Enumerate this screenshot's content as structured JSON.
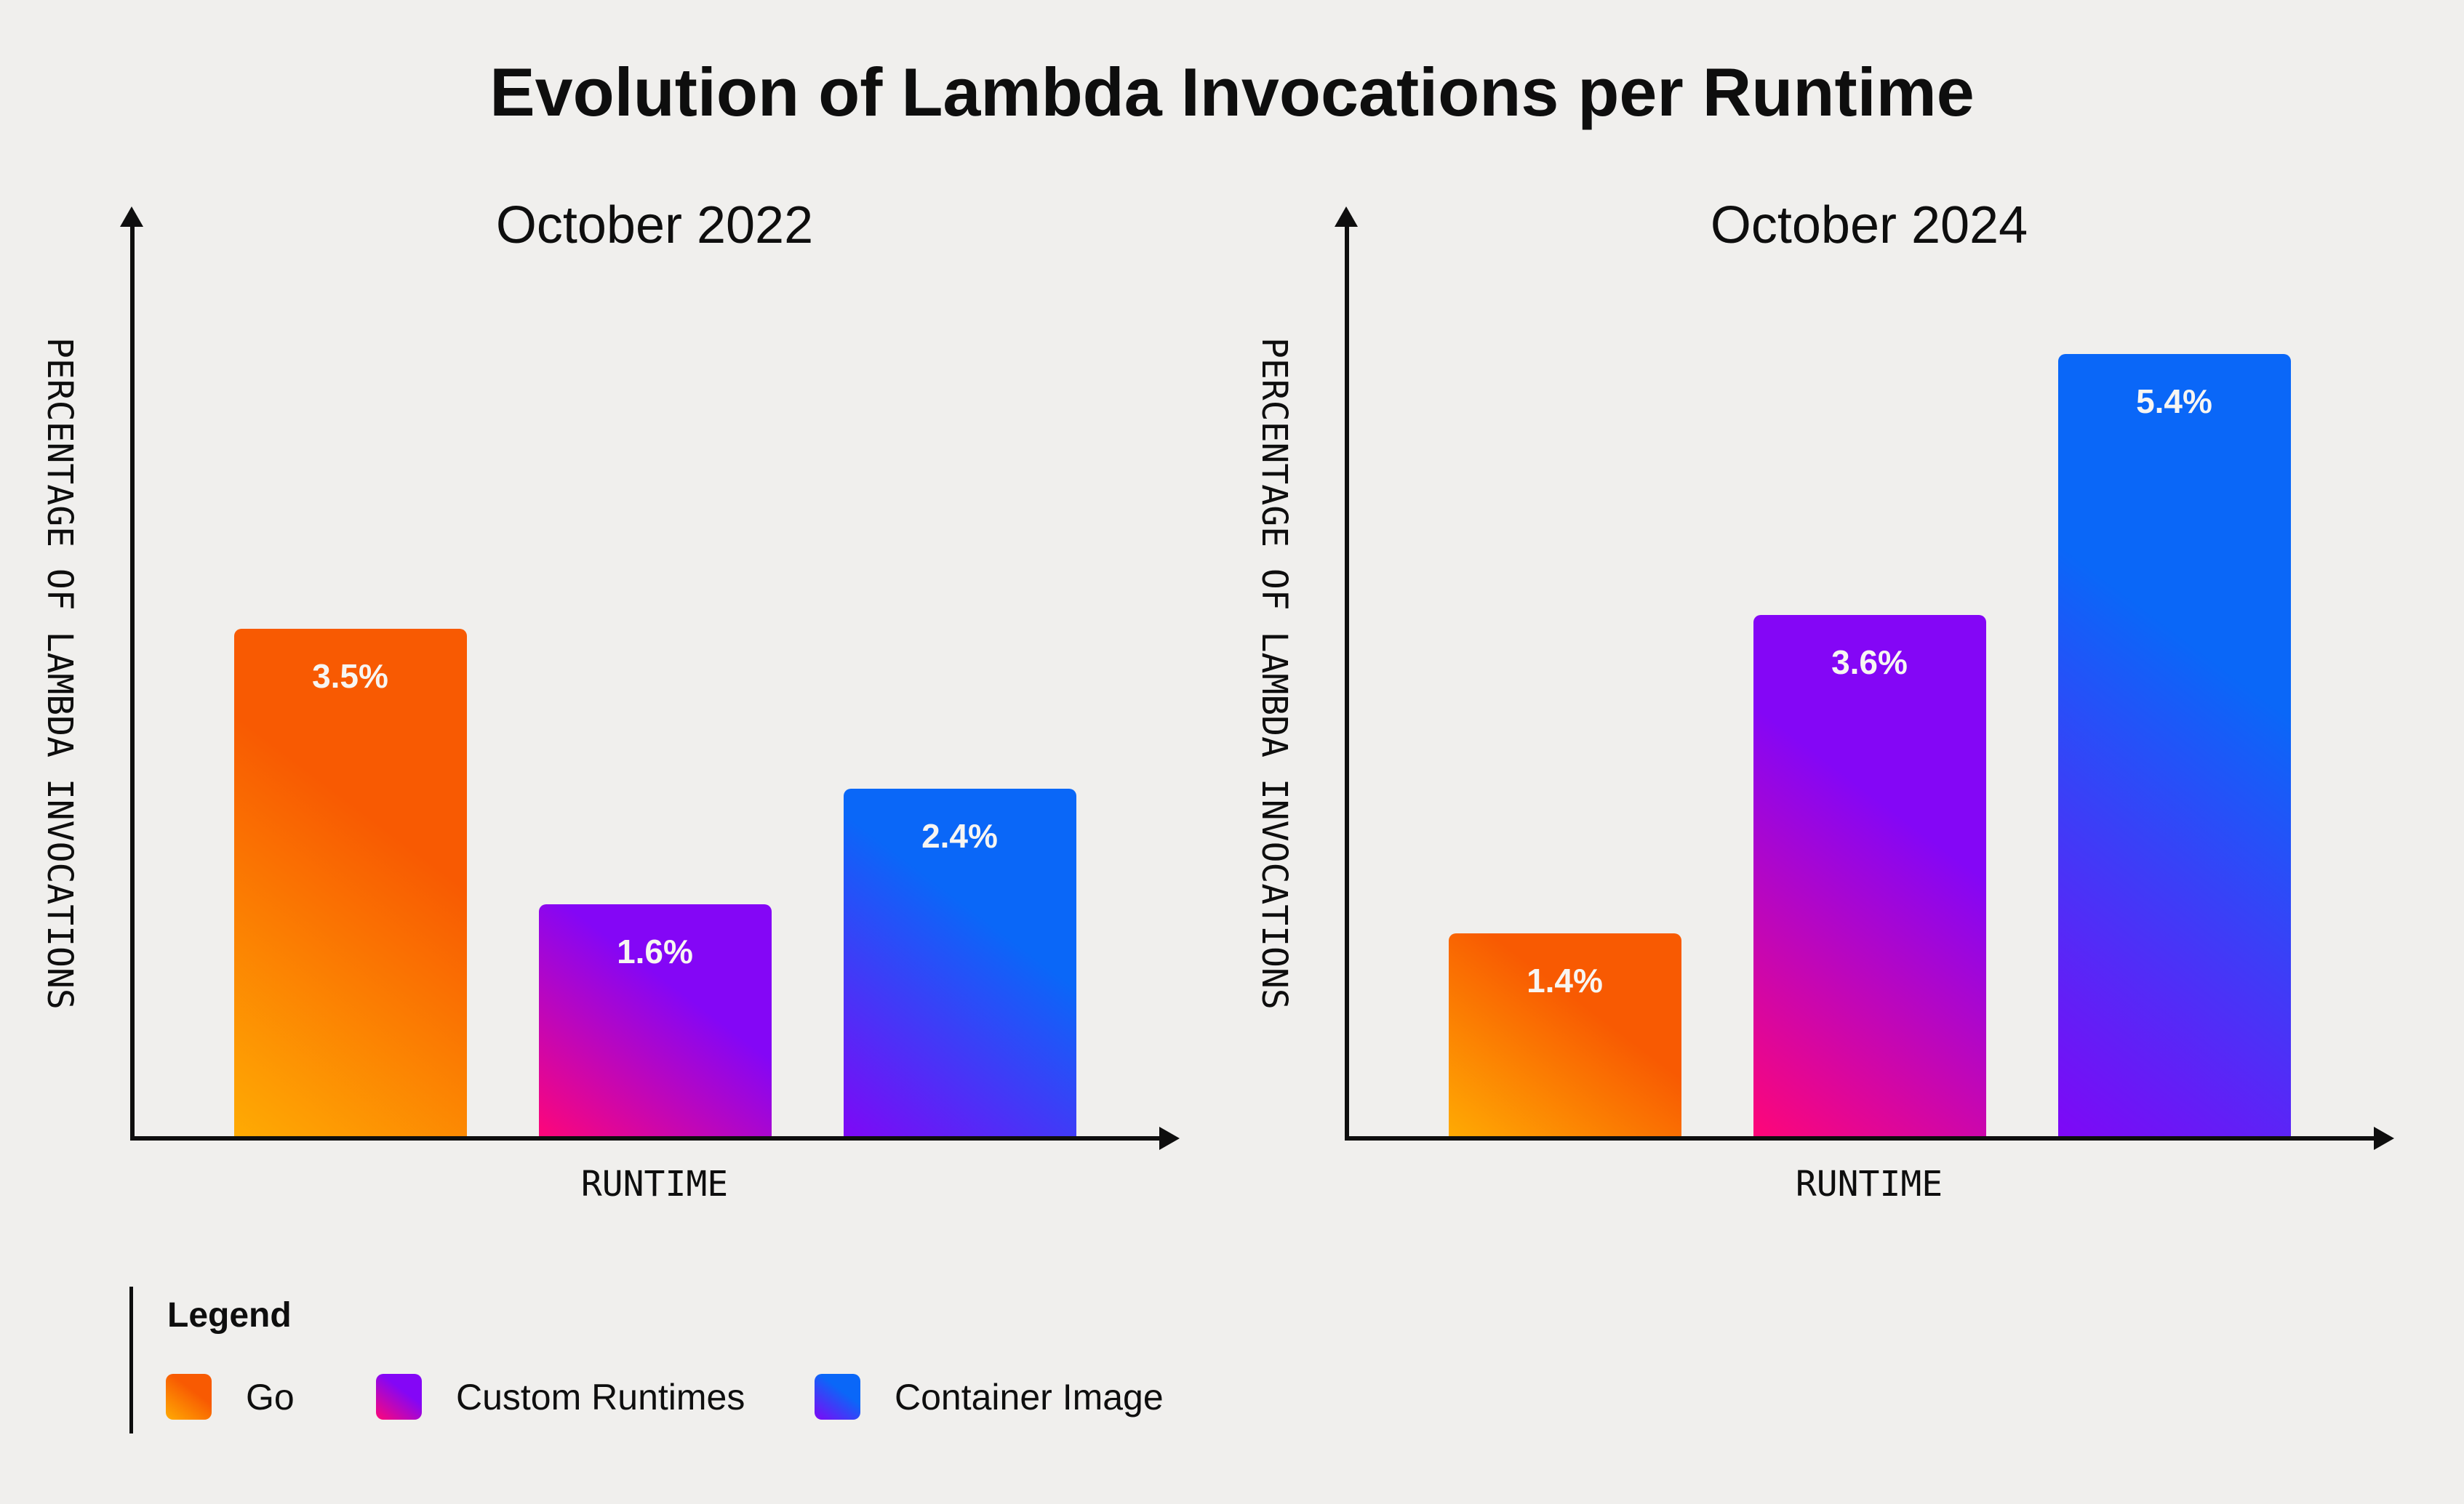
{
  "title": "Evolution of Lambda Invocations per Runtime",
  "legend": {
    "heading": "Legend",
    "items": [
      {
        "label": "Go",
        "series": "go"
      },
      {
        "label": "Custom Runtimes",
        "series": "custom_runtimes"
      },
      {
        "label": "Container Image",
        "series": "container_image"
      }
    ]
  },
  "colors": {
    "background": "#f0efed",
    "ink": "#0e0e0e",
    "bar_label": "#f7f5f2",
    "gradients": {
      "go": {
        "from": "#ffab03",
        "to": "#f85a02"
      },
      "custom_runtimes": {
        "from": "#ff0677",
        "to": "#8406f6"
      },
      "container_image": {
        "from": "#7f07f6",
        "to": "#0a67f8"
      }
    }
  },
  "chart_data": [
    {
      "type": "bar",
      "title": "October 2022",
      "xlabel": "RUNTIME",
      "ylabel": "PERCENTAGE OF LAMBDA INVOCATIONS",
      "categories": [
        "Go",
        "Custom Runtimes",
        "Container Image"
      ],
      "series_keys": [
        "go",
        "custom_runtimes",
        "container_image"
      ],
      "values": [
        3.5,
        1.6,
        2.4
      ],
      "value_labels": [
        "3.5%",
        "1.6%",
        "2.4%"
      ],
      "unit": "%",
      "ylim": [
        0,
        6.4
      ],
      "grid": false,
      "legend_position": "bottom-left"
    },
    {
      "type": "bar",
      "title": "October 2024",
      "xlabel": "RUNTIME",
      "ylabel": "PERCENTAGE OF LAMBDA INVOCATIONS",
      "categories": [
        "Go",
        "Custom Runtimes",
        "Container Image"
      ],
      "series_keys": [
        "go",
        "custom_runtimes",
        "container_image"
      ],
      "values": [
        1.4,
        3.6,
        5.4
      ],
      "value_labels": [
        "1.4%",
        "3.6%",
        "5.4%"
      ],
      "unit": "%",
      "ylim": [
        0,
        6.4
      ],
      "grid": false,
      "legend_position": "bottom-left"
    }
  ]
}
